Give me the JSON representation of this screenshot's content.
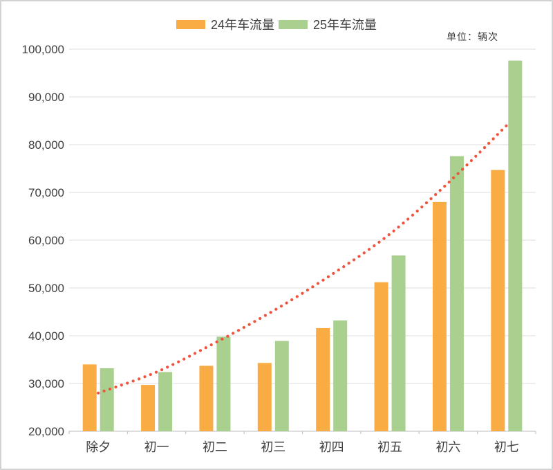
{
  "frame": {
    "border_color": "#d2d2d2",
    "background": "#ffffff"
  },
  "legend": {
    "items": [
      {
        "label": "24年车流量",
        "color": "#FAAC44"
      },
      {
        "label": "25年车流量",
        "color": "#A9D08E"
      }
    ]
  },
  "chart_data": {
    "type": "bar",
    "title": "",
    "unit": "单位：辆次",
    "categories": [
      "除夕",
      "初一",
      "初二",
      "初三",
      "初四",
      "初五",
      "初六",
      "初七"
    ],
    "series": [
      {
        "name": "24年车流量",
        "color": "#FAAC44",
        "values": [
          34000,
          29700,
          33700,
          34300,
          41600,
          51200,
          68000,
          74700
        ]
      },
      {
        "name": "25年车流量",
        "color": "#A9D08E",
        "values": [
          33200,
          32400,
          39800,
          38900,
          43200,
          56800,
          77600,
          97600
        ]
      }
    ],
    "trendline": {
      "style": "dotted",
      "color": "#F0543C",
      "values": [
        28000,
        32400,
        38500,
        45200,
        52800,
        61300,
        72000,
        84000
      ]
    },
    "ylim": [
      20000,
      100000
    ],
    "ytick_interval": 10000,
    "ytick_labels": [
      "20,000",
      "30,000",
      "40,000",
      "50,000",
      "60,000",
      "70,000",
      "80,000",
      "90,000",
      "100,000"
    ],
    "xlabel": "",
    "ylabel": "",
    "grid": true,
    "legend_position": "top",
    "colors": {
      "gridline": "#dedede",
      "axis_line": "#c9c9c9",
      "text": "#3f3f3f"
    }
  }
}
